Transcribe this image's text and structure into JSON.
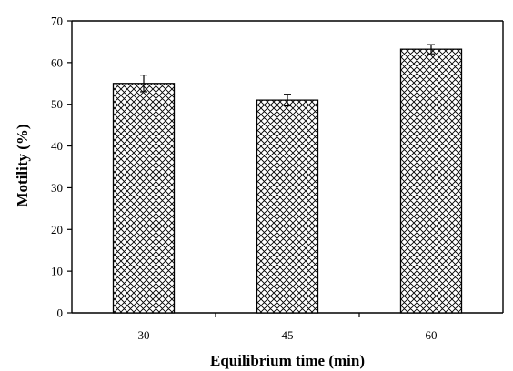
{
  "chart_data": {
    "type": "bar",
    "title": "",
    "xlabel": "Equilibrium time (min)",
    "ylabel": "Motility (%)",
    "categories": [
      "30",
      "45",
      "60"
    ],
    "series": [
      {
        "values": [
          55,
          51,
          63.2
        ],
        "errors": [
          2,
          1.4,
          1.1
        ]
      }
    ],
    "ylim": [
      0,
      70
    ],
    "yticks": [
      0,
      10,
      20,
      30,
      40,
      50,
      60,
      70
    ],
    "grid": false,
    "legend": "none",
    "bar_fill": "crosshatch",
    "colors": {
      "bar_stroke": "#000000",
      "hatch": "#000000",
      "background": "#ffffff"
    }
  }
}
